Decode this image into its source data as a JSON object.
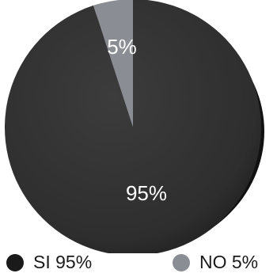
{
  "chart_data": {
    "type": "pie",
    "slices": [
      {
        "label": "SI",
        "value": 95,
        "display": "95%",
        "color": "#343434"
      },
      {
        "label": "NO",
        "value": 5,
        "display": "5%",
        "color": "#8a8d93"
      }
    ],
    "legend": [
      {
        "text": "SI 95%",
        "color": "#1a1a1a"
      },
      {
        "text": "NO 5%",
        "color": "#8a8d93"
      }
    ],
    "legend_position": "bottom"
  }
}
